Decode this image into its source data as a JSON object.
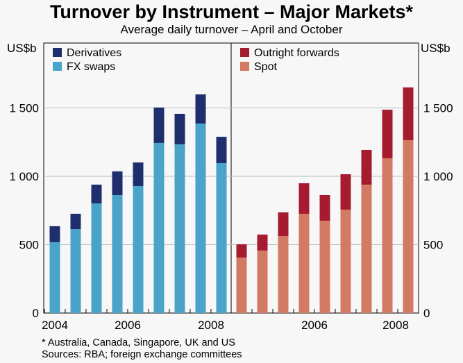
{
  "chart_data": [
    {
      "type": "bar",
      "stacked": true,
      "title": "Turnover by Instrument – Major Markets*",
      "subtitle": "Average daily turnover – April and October",
      "ylabel": "US$b",
      "ylim": [
        0,
        1750
      ],
      "yticks": [
        "0",
        "500",
        "1 000",
        "1 500"
      ],
      "xticks": [
        "2004",
        "2006",
        "2008"
      ],
      "legend_position": "top-left",
      "categories": [
        "Apr 2004",
        "Oct 2004",
        "Apr 2005",
        "Oct 2005",
        "Apr 2006",
        "Oct 2006",
        "Apr 2007",
        "Oct 2007",
        "Apr 2008"
      ],
      "series": [
        {
          "name": "FX swaps",
          "color": "#4aa3c8",
          "values": [
            518,
            614,
            802,
            863,
            929,
            1244,
            1234,
            1386,
            1096
          ]
        },
        {
          "name": "Derivatives",
          "color": "#1f2f6e",
          "values": [
            117,
            112,
            137,
            173,
            172,
            259,
            223,
            213,
            193
          ]
        }
      ]
    },
    {
      "type": "bar",
      "stacked": true,
      "ylabel": "US$b",
      "ylim": [
        0,
        1750
      ],
      "yticks": [
        "0",
        "500",
        "1 000",
        "1 500"
      ],
      "xticks": [
        "2006",
        "2008"
      ],
      "legend_position": "top-left",
      "categories": [
        "Apr 2004",
        "Oct 2004",
        "Apr 2005",
        "Oct 2005",
        "Apr 2006",
        "Oct 2006",
        "Apr 2007",
        "Oct 2007",
        "Apr 2008"
      ],
      "series": [
        {
          "name": "Spot",
          "color": "#d27a64",
          "values": [
            406,
            457,
            563,
            726,
            675,
            756,
            939,
            1132,
            1264
          ]
        },
        {
          "name": "Outright forwards",
          "color": "#a51c30",
          "values": [
            97,
            117,
            173,
            223,
            188,
            259,
            254,
            355,
            386
          ]
        }
      ]
    }
  ],
  "footnotes": {
    "note": "*    Australia, Canada, Singapore, UK and US",
    "sources": "Sources: RBA; foreign exchange committees"
  }
}
